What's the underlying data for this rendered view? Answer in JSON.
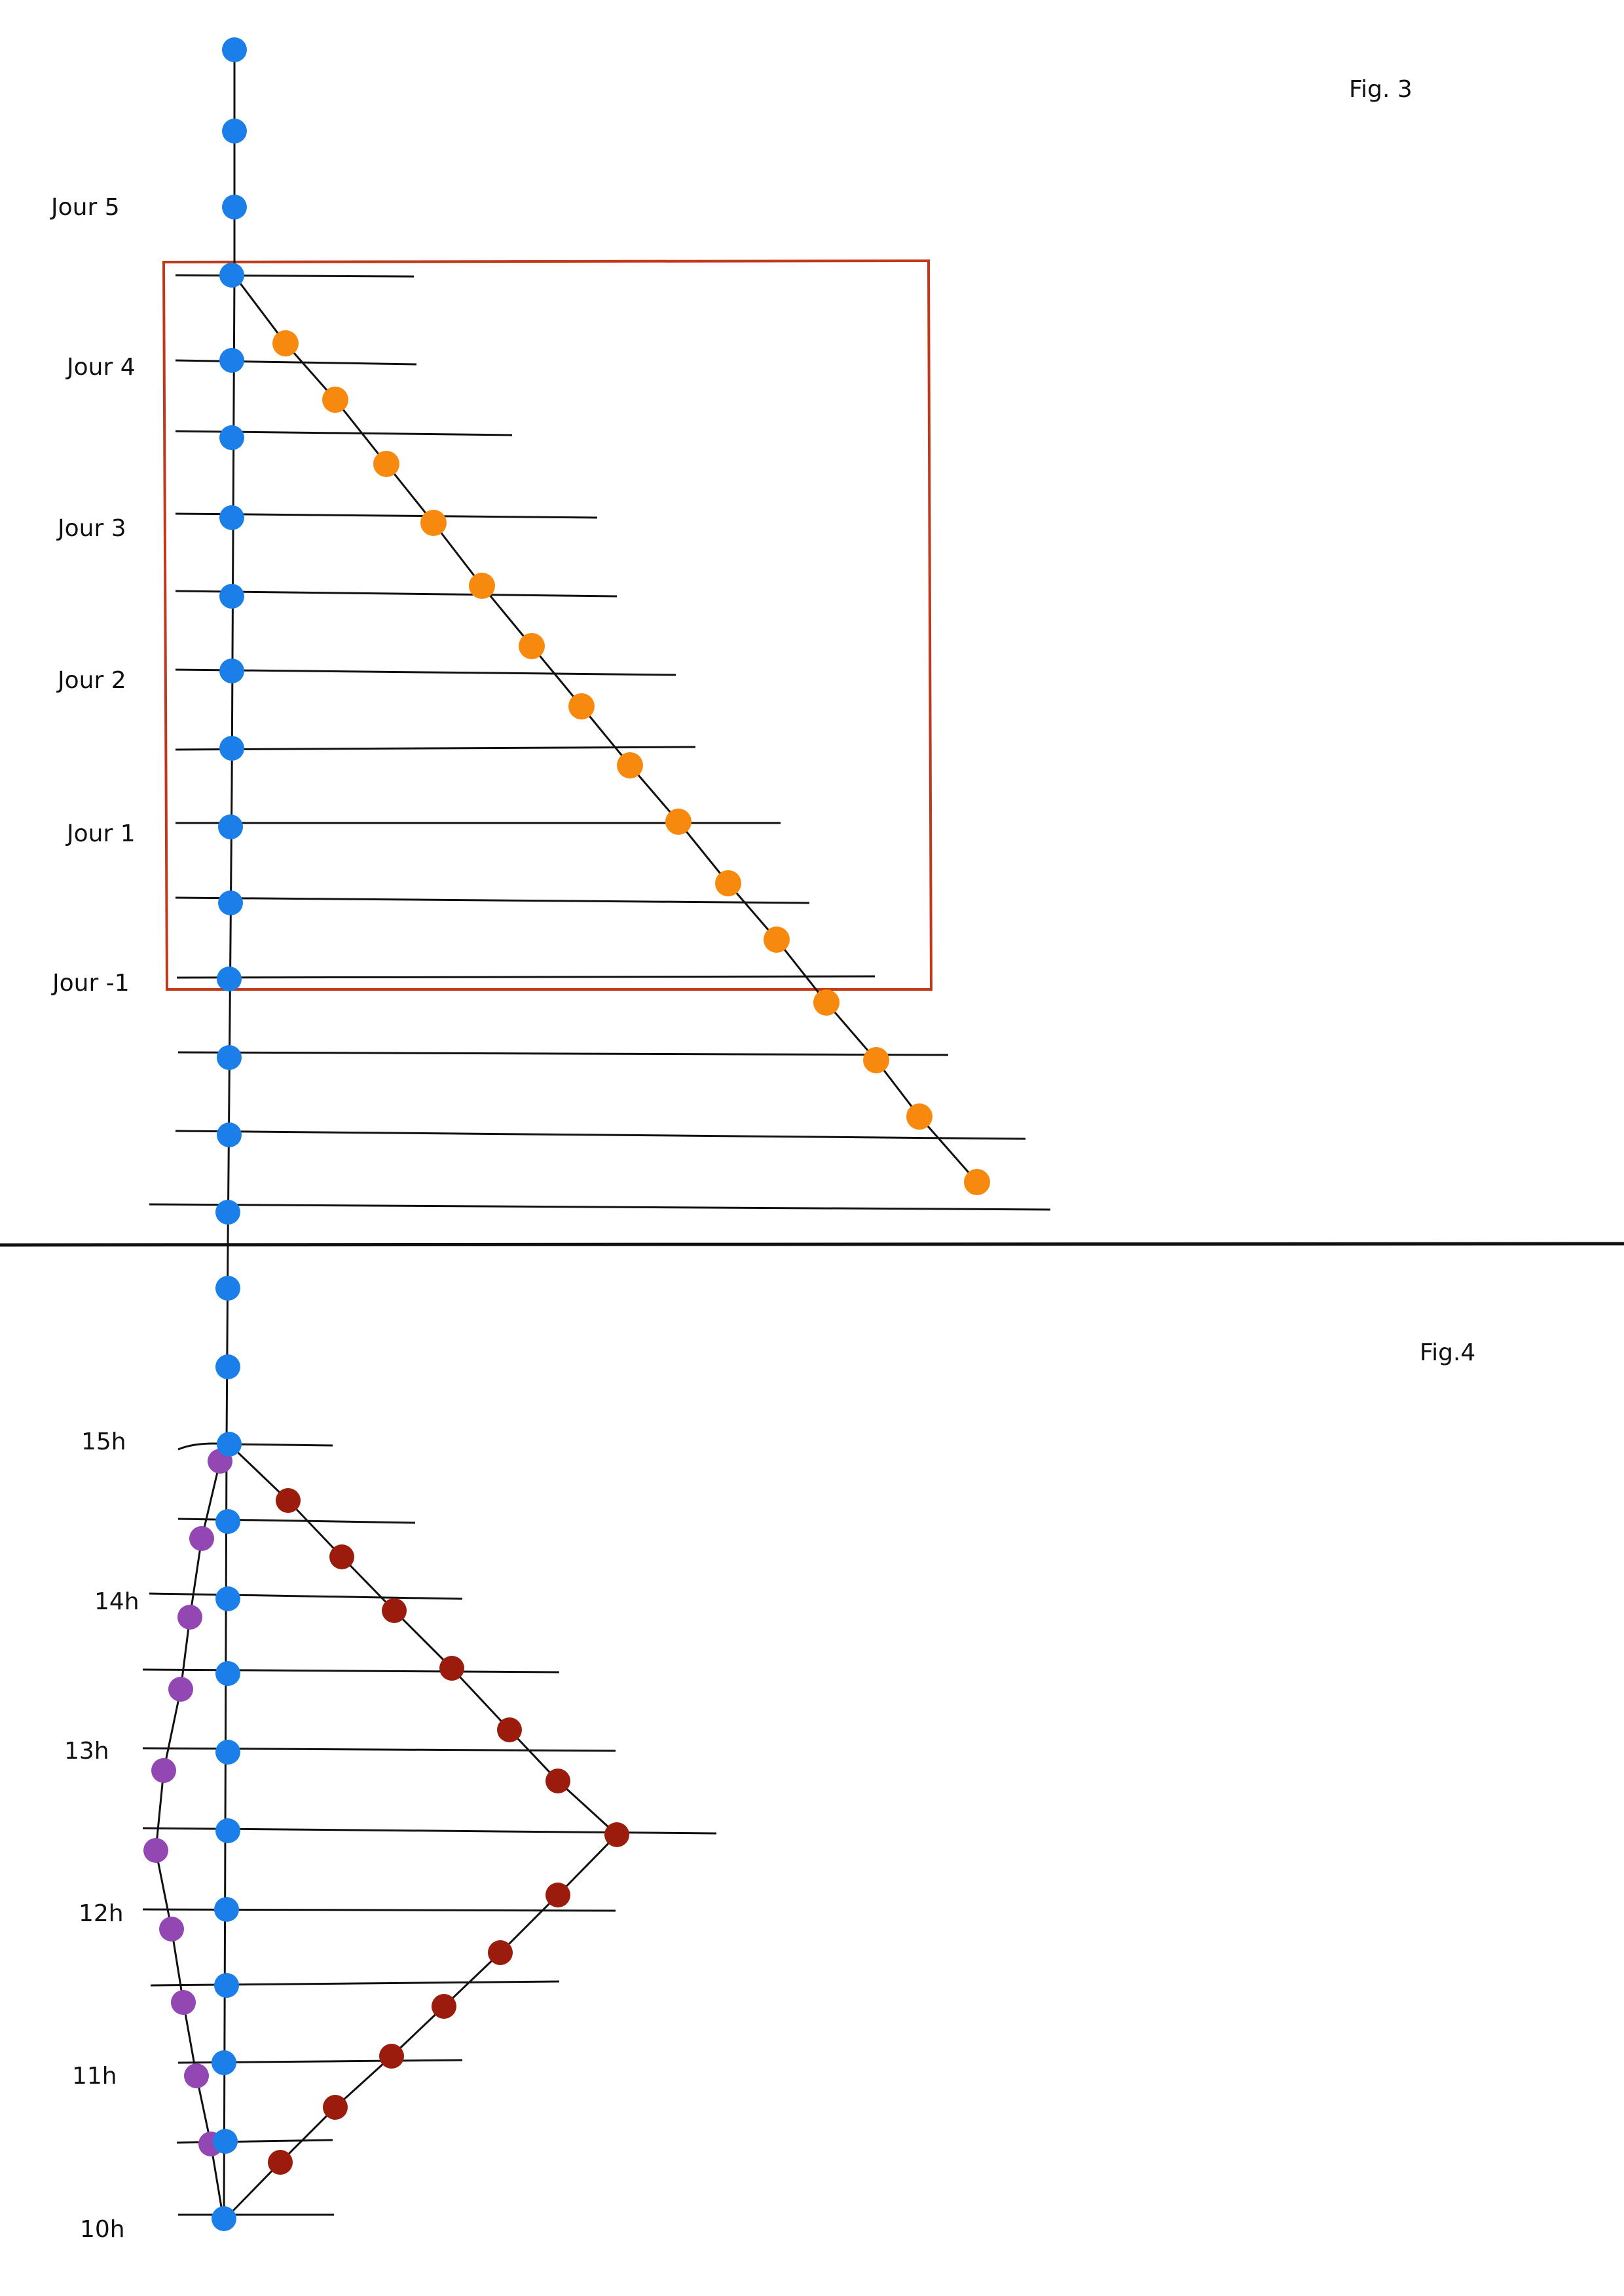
{
  "figure3": {
    "caption": "Fig. 3",
    "day_labels": [
      "Jour 5",
      "Jour 4",
      "Jour 3",
      "Jour 2",
      "Jour 1",
      "Jour -1"
    ]
  },
  "figure4": {
    "caption": "Fig.4",
    "hour_labels": [
      "15h",
      "14h",
      "13h",
      "12h",
      "11h",
      "10h"
    ]
  },
  "colors": {
    "blue": "#1a7fe8",
    "orange": "#f7890f",
    "purple": "#9347b3",
    "darkred": "#9b1c0c",
    "frame": "#c0391b",
    "line": "#111111"
  }
}
